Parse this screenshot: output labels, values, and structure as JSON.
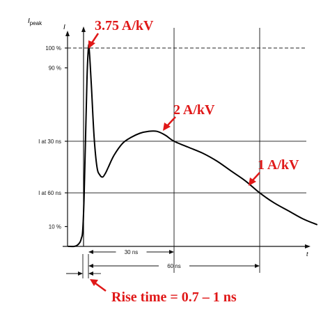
{
  "chart_data": {
    "type": "line",
    "title": "",
    "ylabel_main": "I",
    "ylabel_sub": "peak",
    "ylabel_right": "I",
    "xlabel": "t",
    "y_ticks": [
      {
        "label": "100 %",
        "value": 100,
        "line": "dashed"
      },
      {
        "label": "90 %",
        "value": 90,
        "line": "none"
      },
      {
        "label": "I at 30 ns",
        "value": 53,
        "line": "solid"
      },
      {
        "label": "I at 60 ns",
        "value": 27,
        "line": "solid"
      },
      {
        "label": "10 %",
        "value": 10,
        "line": "none"
      }
    ],
    "series": [
      {
        "x": [
          -7,
          -5,
          -4,
          -3,
          -2.5,
          -2,
          -1.5,
          -1,
          -0.5,
          0,
          0.3,
          1,
          2,
          3,
          4,
          5,
          6,
          7,
          9,
          12,
          15,
          18,
          21,
          24,
          27,
          30,
          35,
          40,
          45,
          50,
          55,
          60,
          65,
          70,
          75,
          80
        ],
        "y": [
          0,
          0,
          0.5,
          2,
          4,
          8,
          25,
          55,
          85,
          100,
          99,
          82,
          55,
          40,
          36,
          35,
          37,
          40,
          46,
          52,
          55,
          57,
          58,
          58,
          56,
          53,
          50,
          47,
          43,
          38,
          33,
          27,
          22,
          18,
          14,
          11
        ]
      }
    ],
    "markers": [
      {
        "x": 30,
        "label": "30 ns"
      },
      {
        "x": 60,
        "label": "60 ns"
      }
    ],
    "annotations": [
      {
        "text": "3.75 A/kV",
        "x": 0,
        "y": 100
      },
      {
        "text": "2 A/kV",
        "x": 30,
        "y": 53
      },
      {
        "text": "1 A/kV",
        "x": 60,
        "y": 27
      },
      {
        "text": "Rise time = 0.7 – 1 ns",
        "x": 0,
        "y": -14
      }
    ],
    "xlim": [
      -7,
      80
    ],
    "ylim": [
      0,
      100
    ],
    "grid": false,
    "colors": {
      "curve": "#000000",
      "annotation": "#e01818"
    }
  }
}
